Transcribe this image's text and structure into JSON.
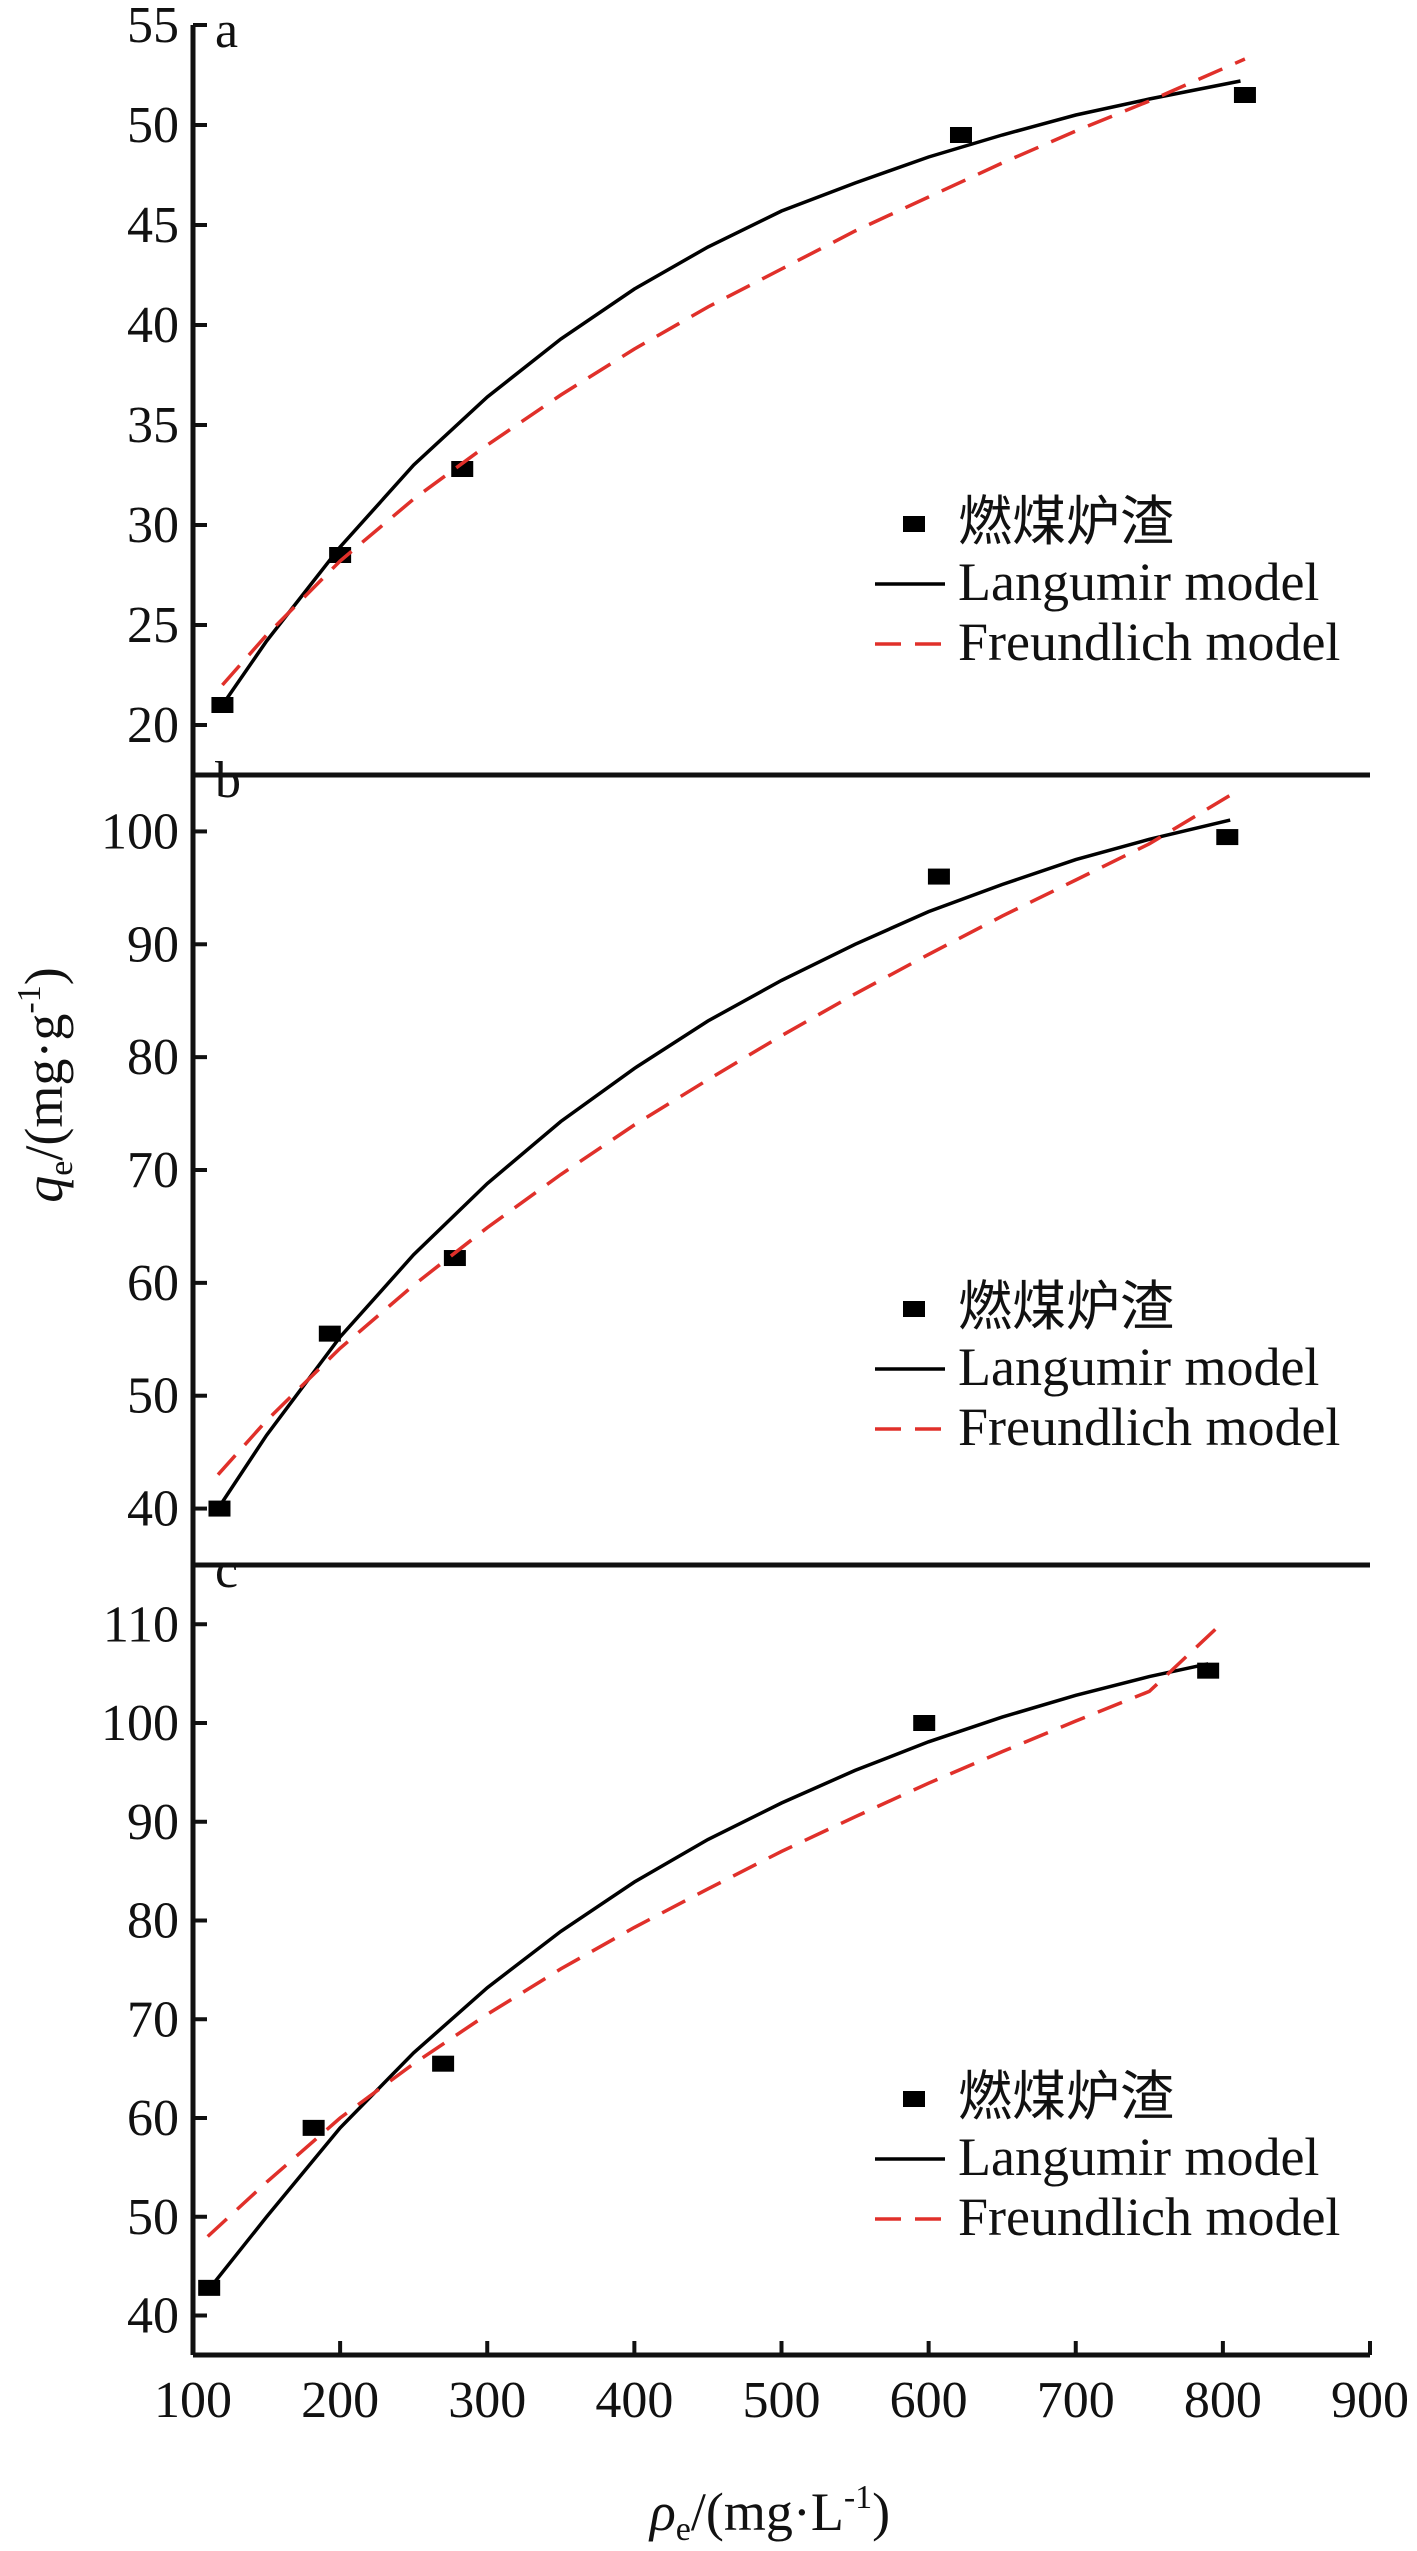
{
  "chart_data": [
    {
      "type": "scatter",
      "panel_label": "a",
      "xlim": [
        100,
        900
      ],
      "ylim": [
        17.5,
        55
      ],
      "yticks": [
        20,
        25,
        30,
        35,
        40,
        45,
        50,
        55
      ],
      "series": [
        {
          "name": "燃煤炉渣",
          "kind": "points",
          "color": "#000000",
          "x": [
            120,
            200,
            283,
            622,
            815
          ],
          "y": [
            21.0,
            28.5,
            32.8,
            49.5,
            51.5
          ]
        },
        {
          "name": "Langumir model",
          "kind": "line",
          "color": "#000000",
          "x": [
            120,
            150,
            200,
            250,
            300,
            350,
            400,
            450,
            500,
            550,
            600,
            650,
            700,
            750,
            812
          ],
          "y": [
            21.0,
            24.2,
            28.9,
            33.0,
            36.4,
            39.3,
            41.8,
            43.9,
            45.7,
            47.1,
            48.4,
            49.5,
            50.5,
            51.3,
            52.2
          ]
        },
        {
          "name": "Freundlich model",
          "kind": "line",
          "color": "#e0302a",
          "x": [
            120,
            150,
            200,
            250,
            300,
            350,
            400,
            450,
            500,
            550,
            600,
            650,
            700,
            750,
            815
          ],
          "y": [
            22.0,
            24.5,
            28.2,
            31.3,
            34.0,
            36.5,
            38.8,
            40.9,
            42.8,
            44.7,
            46.4,
            48.1,
            49.7,
            51.2,
            53.3
          ]
        }
      ],
      "legend_position": "bottom-right"
    },
    {
      "type": "scatter",
      "panel_label": "b",
      "xlim": [
        100,
        900
      ],
      "ylim": [
        35,
        105
      ],
      "yticks": [
        40,
        50,
        60,
        70,
        80,
        90,
        100
      ],
      "series": [
        {
          "name": "燃煤炉渣",
          "kind": "points",
          "color": "#000000",
          "x": [
            118,
            193,
            278,
            607,
            803
          ],
          "y": [
            40.0,
            55.5,
            62.2,
            96.0,
            99.5
          ]
        },
        {
          "name": "Langumir model",
          "kind": "line",
          "color": "#000000",
          "x": [
            117,
            150,
            200,
            250,
            300,
            350,
            400,
            450,
            500,
            550,
            600,
            650,
            700,
            750,
            805
          ],
          "y": [
            40.0,
            46.5,
            55.2,
            62.5,
            68.8,
            74.3,
            79.0,
            83.2,
            86.8,
            90.0,
            92.9,
            95.3,
            97.5,
            99.3,
            101.0
          ]
        },
        {
          "name": "Freundlich model",
          "kind": "line",
          "color": "#e0302a",
          "x": [
            117,
            150,
            200,
            250,
            300,
            350,
            400,
            450,
            500,
            550,
            600,
            650,
            700,
            750,
            805
          ],
          "y": [
            43.0,
            47.8,
            54.2,
            59.8,
            64.9,
            69.6,
            74.0,
            78.0,
            81.9,
            85.6,
            89.1,
            92.5,
            95.7,
            98.9,
            103.2
          ]
        }
      ],
      "legend_position": "bottom-right"
    },
    {
      "type": "scatter",
      "panel_label": "c",
      "xlim": [
        100,
        900
      ],
      "ylim": [
        36,
        116
      ],
      "yticks": [
        40,
        50,
        60,
        70,
        80,
        90,
        100,
        110
      ],
      "series": [
        {
          "name": "燃煤炉渣",
          "kind": "points",
          "color": "#000000",
          "x": [
            111,
            182,
            270,
            597,
            790
          ],
          "y": [
            42.8,
            59.0,
            65.5,
            100.0,
            105.3
          ]
        },
        {
          "name": "Langumir model",
          "kind": "line",
          "color": "#000000",
          "x": [
            110,
            150,
            200,
            250,
            300,
            350,
            400,
            450,
            500,
            550,
            600,
            650,
            700,
            750,
            790
          ],
          "y": [
            42.5,
            50.0,
            59.0,
            66.6,
            73.2,
            78.9,
            83.9,
            88.2,
            91.9,
            95.2,
            98.1,
            100.6,
            102.8,
            104.7,
            106.0
          ]
        },
        {
          "name": "Freundlich model",
          "kind": "line",
          "color": "#e0302a",
          "x": [
            110,
            150,
            200,
            250,
            300,
            350,
            400,
            450,
            500,
            550,
            600,
            650,
            700,
            750,
            795
          ],
          "y": [
            48.0,
            53.5,
            60.0,
            65.5,
            70.5,
            75.1,
            79.3,
            83.2,
            87.0,
            90.5,
            93.9,
            97.1,
            100.2,
            103.2,
            109.5
          ]
        }
      ],
      "legend_position": "bottom-right"
    }
  ],
  "shared_x_axis": {
    "xticks": [
      100,
      200,
      300,
      400,
      500,
      600,
      700,
      800,
      900
    ],
    "xlabel_symbol": "ρ",
    "xlabel_sub": "e",
    "xlabel_unit_pre": "/(mg·L",
    "xlabel_sup": "-1",
    "xlabel_unit_post": ")"
  },
  "shared_y_axis": {
    "ylabel_symbol": "q",
    "ylabel_sub": "e",
    "ylabel_unit_pre": "/(mg·g",
    "ylabel_sup": "-1",
    "ylabel_unit_post": ")"
  }
}
